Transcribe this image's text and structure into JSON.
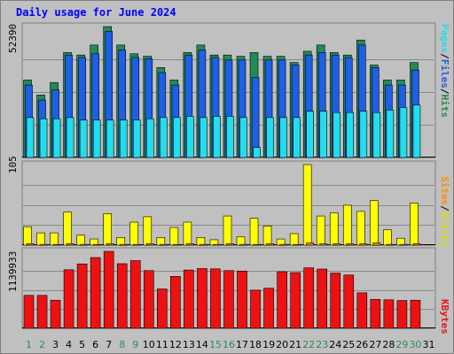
{
  "title": "Daily usage for June 2024",
  "colors": {
    "title": "#0000ff",
    "hits": "#228b57",
    "files": "#1e5fe6",
    "pages": "#22ddee",
    "visits": "#ffff00",
    "sites": "#ff8c00",
    "kbytes": "#ee1111",
    "weekend": "#2e8b57",
    "panel": "#c0c0c0"
  },
  "right_labels": {
    "top": [
      "Pages",
      "Files",
      "Hits"
    ],
    "middle": [
      "Sites",
      "Visits"
    ],
    "bottom": [
      "KBytes"
    ]
  },
  "chart_data": [
    {
      "type": "bar",
      "panel": "hits-files-pages",
      "max_label": "52390",
      "ylim": [
        0,
        52390
      ],
      "x": [
        1,
        2,
        3,
        4,
        5,
        6,
        7,
        8,
        9,
        10,
        11,
        12,
        13,
        14,
        15,
        16,
        17,
        18,
        19,
        20,
        21,
        22,
        23,
        24,
        25,
        26,
        27,
        28,
        29,
        30
      ],
      "series": [
        {
          "name": "Hits",
          "values": [
            31000,
            25000,
            30000,
            42000,
            41000,
            45000,
            52390,
            45000,
            41500,
            40500,
            36000,
            31000,
            42000,
            45000,
            41000,
            41000,
            40500,
            42000,
            40500,
            40500,
            38000,
            42500,
            45000,
            42000,
            41000,
            47000,
            37000,
            31000,
            31000,
            38000
          ]
        },
        {
          "name": "Files",
          "values": [
            29000,
            23000,
            27000,
            41000,
            40000,
            41500,
            50500,
            43000,
            40000,
            39500,
            34000,
            29000,
            41000,
            43000,
            40000,
            39000,
            39000,
            32000,
            39000,
            39000,
            37000,
            41000,
            42000,
            41000,
            40000,
            45000,
            36000,
            29000,
            29000,
            35000
          ]
        },
        {
          "name": "Pages",
          "values": [
            16000,
            15500,
            15500,
            16000,
            15000,
            15000,
            15000,
            15000,
            15000,
            15500,
            16000,
            16000,
            16500,
            16000,
            16500,
            16500,
            16000,
            4000,
            16000,
            16000,
            16000,
            18500,
            18500,
            18000,
            18000,
            18500,
            18000,
            19000,
            20000,
            21000
          ]
        }
      ]
    },
    {
      "type": "bar",
      "panel": "visits-sites",
      "max_label": "105",
      "ylim": [
        0,
        105
      ],
      "x": [
        1,
        2,
        3,
        4,
        5,
        6,
        7,
        8,
        9,
        10,
        11,
        12,
        13,
        14,
        15,
        16,
        17,
        18,
        19,
        20,
        21,
        22,
        23,
        24,
        25,
        26,
        27,
        28,
        29,
        30
      ],
      "series": [
        {
          "name": "Visits",
          "values": [
            24,
            16,
            16,
            43,
            13,
            8,
            41,
            10,
            30,
            37,
            10,
            23,
            30,
            10,
            7,
            38,
            11,
            35,
            25,
            8,
            15,
            105,
            38,
            42,
            52,
            44,
            58,
            20,
            9,
            55
          ]
        },
        {
          "name": "Sites",
          "values": [
            2,
            1,
            1,
            2,
            1,
            1,
            2,
            1,
            1,
            2,
            1,
            1,
            2,
            1,
            1,
            2,
            1,
            1,
            2,
            1,
            1,
            3,
            2,
            2,
            2,
            2,
            3,
            1,
            1,
            2
          ]
        }
      ]
    },
    {
      "type": "bar",
      "panel": "kbytes",
      "max_label": "1139933",
      "ylim": [
        0,
        1139933
      ],
      "x": [
        1,
        2,
        3,
        4,
        5,
        6,
        7,
        8,
        9,
        10,
        11,
        12,
        13,
        14,
        15,
        16,
        17,
        18,
        19,
        20,
        21,
        22,
        23,
        24,
        25,
        26,
        27,
        28,
        29,
        30
      ],
      "series": [
        {
          "name": "KBytes",
          "values": [
            488000,
            488000,
            416000,
            867000,
            954000,
            1048000,
            1139933,
            957000,
            1002000,
            855000,
            583000,
            769000,
            863000,
            885000,
            880000,
            855000,
            848000,
            566000,
            594000,
            838000,
            825000,
            896000,
            878000,
            818000,
            789000,
            526000,
            428000,
            422000,
            412000,
            416000
          ]
        }
      ]
    }
  ],
  "x_ticks": [
    "1",
    "2",
    "3",
    "4",
    "5",
    "6",
    "7",
    "8",
    "9",
    "10",
    "11",
    "12",
    "13",
    "14",
    "15",
    "16",
    "17",
    "18",
    "19",
    "20",
    "21",
    "22",
    "23",
    "24",
    "25",
    "26",
    "27",
    "28",
    "29",
    "30",
    "31"
  ],
  "weekend_days": [
    1,
    2,
    8,
    9,
    15,
    16,
    22,
    23,
    29,
    30
  ]
}
